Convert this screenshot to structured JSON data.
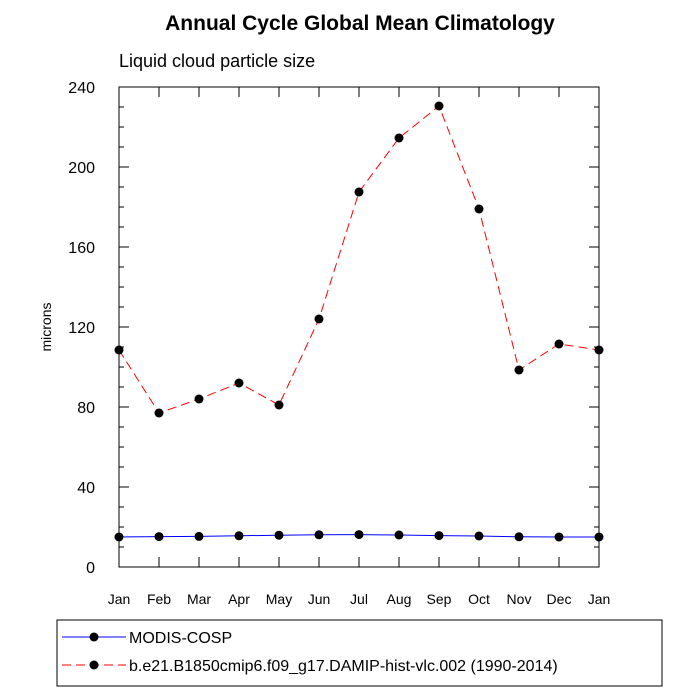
{
  "chart_data": {
    "type": "line",
    "title": "Annual Cycle Global Mean Climatology",
    "subtitle": "Liquid cloud particle size",
    "ylabel": "microns",
    "xlabel": "",
    "categories": [
      "Jan",
      "Feb",
      "Mar",
      "Apr",
      "May",
      "Jun",
      "Jul",
      "Aug",
      "Sep",
      "Oct",
      "Nov",
      "Dec",
      "Jan"
    ],
    "ylim": [
      0,
      240
    ],
    "yticks": [
      0,
      40,
      80,
      120,
      160,
      200,
      240
    ],
    "series": [
      {
        "name": "MODIS-COSP",
        "color": "#0000ff",
        "dash": "solid",
        "marker": "dot",
        "values": [
          15,
          15.2,
          15.3,
          15.6,
          15.9,
          16.1,
          16.2,
          16.0,
          15.7,
          15.5,
          15.1,
          15.0,
          15.0
        ]
      },
      {
        "name": "b.e21.B1850cmip6.f09_g17.DAMIP-hist-vlc.002 (1990-2014)",
        "color": "#ff0000",
        "dash": "dashed",
        "marker": "dot",
        "values": [
          108.5,
          77,
          84,
          92,
          81,
          124,
          187.5,
          214.5,
          230.5,
          179,
          98.5,
          111.5,
          108.5
        ]
      }
    ],
    "grid": false,
    "legend_position": "bottom-left"
  }
}
